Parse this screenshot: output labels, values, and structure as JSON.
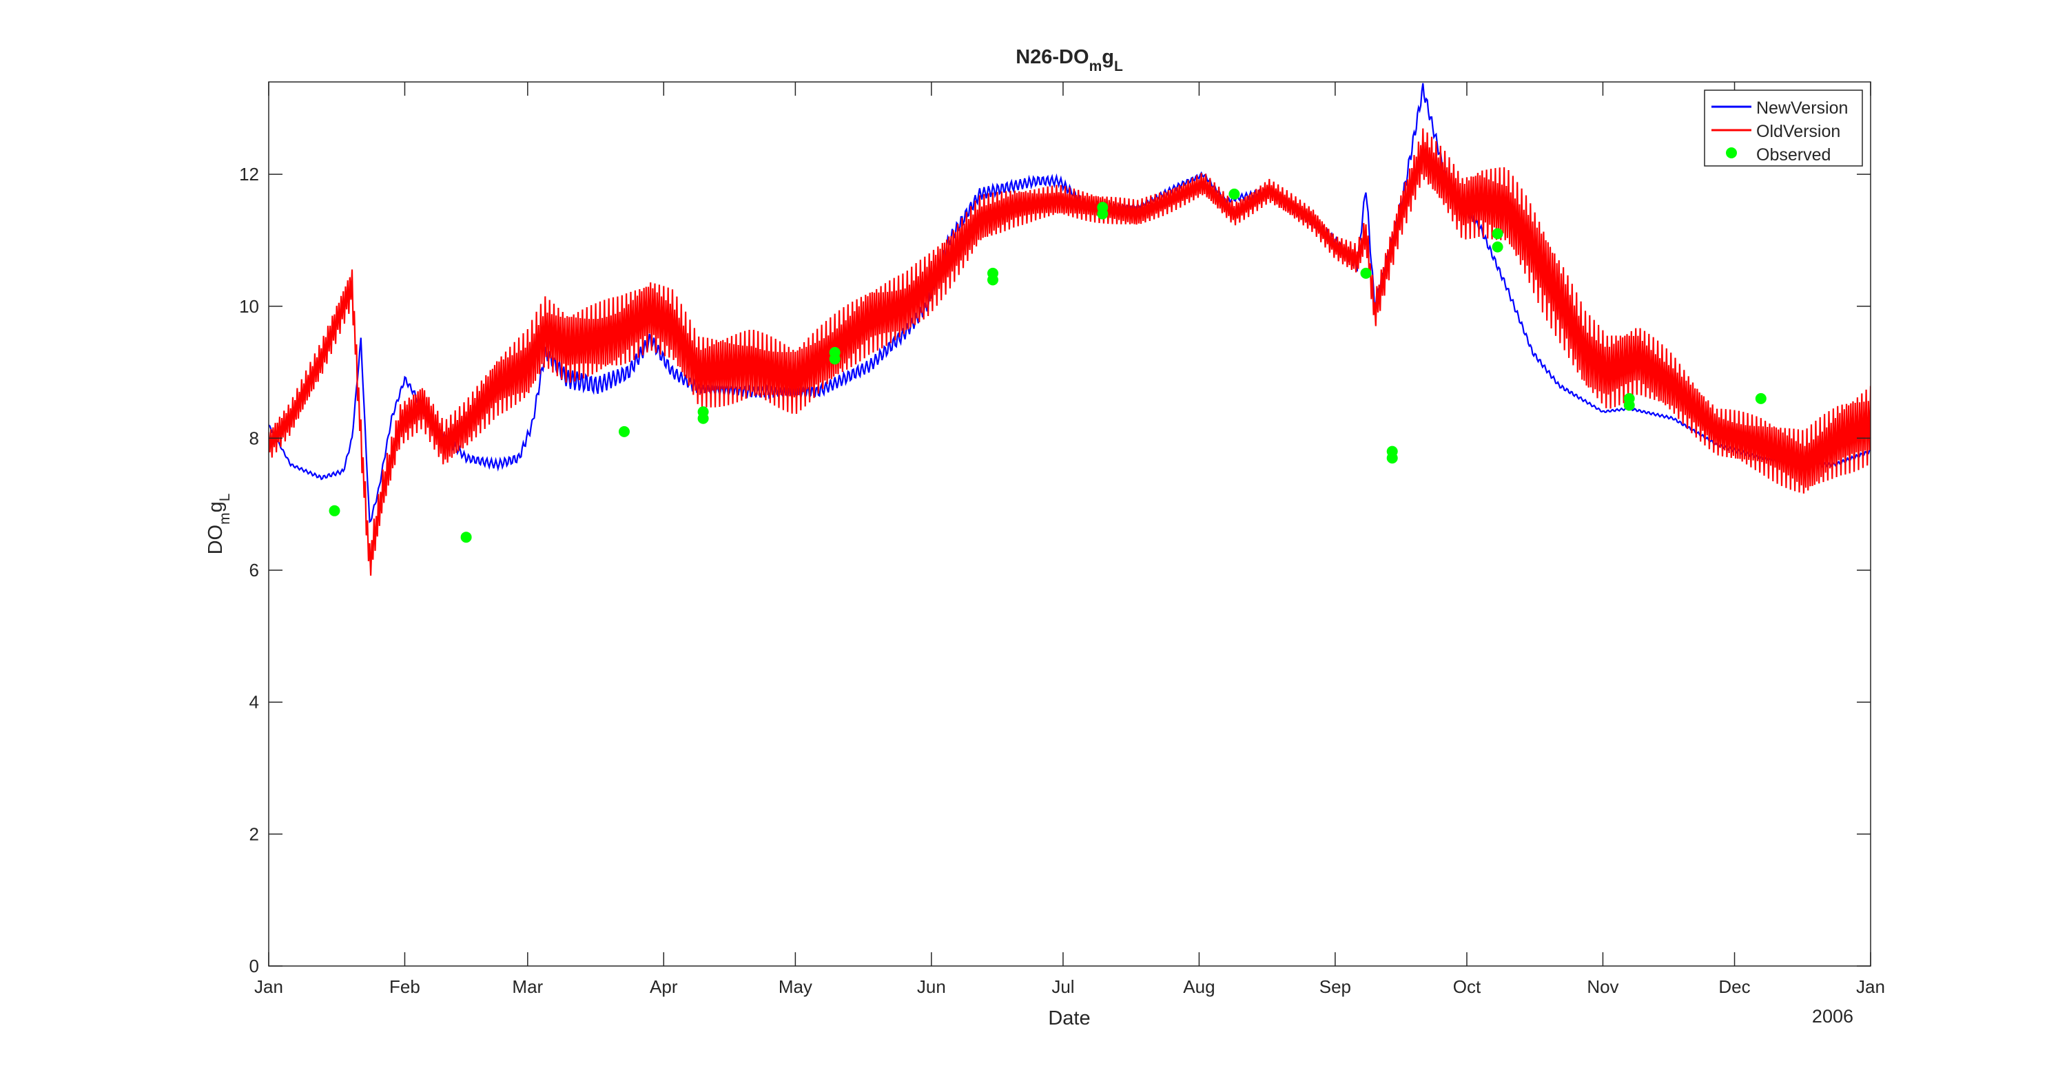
{
  "chart_data": {
    "type": "line",
    "title": "N26-DO",
    "title_sub": "m",
    "title_mid": "g",
    "title_sub2": "L",
    "xlabel": "Date",
    "ylabel": "DO",
    "ylabel_sub": "m",
    "ylabel_mid": "g",
    "ylabel_sub2": "L",
    "year_label": "2006",
    "x_ticks": [
      "Jan",
      "Feb",
      "Mar",
      "Apr",
      "May",
      "Jun",
      "Jul",
      "Aug",
      "Sep",
      "Oct",
      "Nov",
      "Dec",
      "Jan"
    ],
    "x_tick_days": [
      0,
      31,
      59,
      90,
      120,
      151,
      181,
      212,
      243,
      273,
      304,
      334,
      365
    ],
    "xlim_days": [
      0,
      365
    ],
    "ylim": [
      0,
      13.4
    ],
    "y_ticks": [
      0,
      2,
      4,
      6,
      8,
      10,
      12
    ],
    "legend_position": "top-right",
    "grid": false,
    "series": [
      {
        "name": "NewVersion",
        "color": "#0000ff",
        "osc_amp": [
          [
            0,
            0.05
          ],
          [
            60,
            0.25
          ],
          [
            70,
            0.5
          ],
          [
            100,
            0.25
          ],
          [
            150,
            0.35
          ],
          [
            175,
            0.25
          ],
          [
            210,
            0.12
          ],
          [
            243,
            0.2
          ],
          [
            260,
            0.35
          ],
          [
            275,
            0.2
          ],
          [
            304,
            0.05
          ],
          [
            330,
            0.08
          ],
          [
            365,
            0.1
          ]
        ],
        "points": [
          [
            0,
            8.2
          ],
          [
            5,
            7.6
          ],
          [
            12,
            7.4
          ],
          [
            17,
            7.5
          ],
          [
            19,
            8.0
          ],
          [
            21,
            9.5
          ],
          [
            23,
            6.7
          ],
          [
            25,
            7.2
          ],
          [
            28,
            8.3
          ],
          [
            31,
            8.9
          ],
          [
            33,
            8.7
          ],
          [
            36,
            8.3
          ],
          [
            45,
            7.7
          ],
          [
            52,
            7.6
          ],
          [
            57,
            7.7
          ],
          [
            60,
            8.2
          ],
          [
            63,
            9.3
          ],
          [
            68,
            8.9
          ],
          [
            75,
            8.8
          ],
          [
            82,
            9.0
          ],
          [
            87,
            9.5
          ],
          [
            92,
            9.0
          ],
          [
            98,
            8.75
          ],
          [
            110,
            8.7
          ],
          [
            125,
            8.7
          ],
          [
            137,
            9.1
          ],
          [
            145,
            9.6
          ],
          [
            150,
            10.0
          ],
          [
            155,
            11.0
          ],
          [
            162,
            11.7
          ],
          [
            168,
            11.8
          ],
          [
            175,
            11.9
          ],
          [
            180,
            11.9
          ],
          [
            187,
            11.5
          ],
          [
            198,
            11.5
          ],
          [
            208,
            11.85
          ],
          [
            213,
            12.0
          ],
          [
            218,
            11.6
          ],
          [
            228,
            11.75
          ],
          [
            235,
            11.4
          ],
          [
            243,
            11.0
          ],
          [
            248,
            10.6
          ],
          [
            250,
            11.8
          ],
          [
            252,
            10.0
          ],
          [
            258,
            11.5
          ],
          [
            263,
            13.3
          ],
          [
            268,
            12.0
          ],
          [
            272,
            11.5
          ],
          [
            276,
            11.2
          ],
          [
            282,
            10.3
          ],
          [
            288,
            9.3
          ],
          [
            294,
            8.8
          ],
          [
            304,
            8.4
          ],
          [
            310,
            8.45
          ],
          [
            320,
            8.3
          ],
          [
            330,
            7.9
          ],
          [
            340,
            7.7
          ],
          [
            350,
            7.6
          ],
          [
            357,
            7.6
          ],
          [
            365,
            7.8
          ]
        ]
      },
      {
        "name": "OldVersion",
        "color": "#ff0000",
        "osc_amp": [
          [
            0,
            0.2
          ],
          [
            45,
            0.3
          ],
          [
            60,
            0.45
          ],
          [
            100,
            0.45
          ],
          [
            150,
            0.4
          ],
          [
            175,
            0.2
          ],
          [
            210,
            0.15
          ],
          [
            243,
            0.15
          ],
          [
            260,
            0.3
          ],
          [
            290,
            0.55
          ],
          [
            310,
            0.45
          ],
          [
            330,
            0.3
          ],
          [
            365,
            0.5
          ]
        ],
        "points": [
          [
            0,
            7.9
          ],
          [
            5,
            8.3
          ],
          [
            12,
            9.2
          ],
          [
            17,
            10.0
          ],
          [
            19,
            10.3
          ],
          [
            21,
            8.0
          ],
          [
            23,
            6.1
          ],
          [
            26,
            7.2
          ],
          [
            30,
            8.2
          ],
          [
            35,
            8.5
          ],
          [
            40,
            7.9
          ],
          [
            45,
            8.2
          ],
          [
            52,
            8.8
          ],
          [
            59,
            9.1
          ],
          [
            63,
            9.6
          ],
          [
            68,
            9.4
          ],
          [
            75,
            9.5
          ],
          [
            80,
            9.6
          ],
          [
            87,
            9.9
          ],
          [
            92,
            9.7
          ],
          [
            98,
            9.0
          ],
          [
            110,
            9.1
          ],
          [
            120,
            8.9
          ],
          [
            128,
            9.3
          ],
          [
            137,
            9.8
          ],
          [
            145,
            10.0
          ],
          [
            150,
            10.3
          ],
          [
            155,
            10.7
          ],
          [
            162,
            11.3
          ],
          [
            170,
            11.5
          ],
          [
            180,
            11.6
          ],
          [
            188,
            11.5
          ],
          [
            198,
            11.4
          ],
          [
            205,
            11.6
          ],
          [
            213,
            11.85
          ],
          [
            220,
            11.4
          ],
          [
            228,
            11.75
          ],
          [
            238,
            11.3
          ],
          [
            243,
            10.9
          ],
          [
            248,
            10.7
          ],
          [
            250,
            11.1
          ],
          [
            252,
            9.9
          ],
          [
            258,
            11.4
          ],
          [
            263,
            12.3
          ],
          [
            268,
            11.9
          ],
          [
            272,
            11.5
          ],
          [
            276,
            11.6
          ],
          [
            282,
            11.5
          ],
          [
            287,
            11.0
          ],
          [
            295,
            10.0
          ],
          [
            300,
            9.3
          ],
          [
            305,
            9.0
          ],
          [
            312,
            9.2
          ],
          [
            320,
            8.8
          ],
          [
            330,
            8.1
          ],
          [
            340,
            7.9
          ],
          [
            350,
            7.6
          ],
          [
            358,
            8.0
          ],
          [
            365,
            8.2
          ]
        ]
      },
      {
        "name": "Observed",
        "color": "#00ff00",
        "type": "scatter",
        "points": [
          [
            15,
            6.9
          ],
          [
            45,
            6.5
          ],
          [
            81,
            8.1
          ],
          [
            99,
            8.4
          ],
          [
            99,
            8.3
          ],
          [
            129,
            9.3
          ],
          [
            129,
            9.2
          ],
          [
            165,
            10.5
          ],
          [
            165,
            10.4
          ],
          [
            190,
            11.5
          ],
          [
            190,
            11.4
          ],
          [
            220,
            11.7
          ],
          [
            250,
            10.5
          ],
          [
            256,
            7.8
          ],
          [
            256,
            7.7
          ],
          [
            280,
            11.1
          ],
          [
            280,
            10.9
          ],
          [
            310,
            8.6
          ],
          [
            310,
            8.5
          ],
          [
            340,
            8.6
          ]
        ]
      }
    ]
  }
}
